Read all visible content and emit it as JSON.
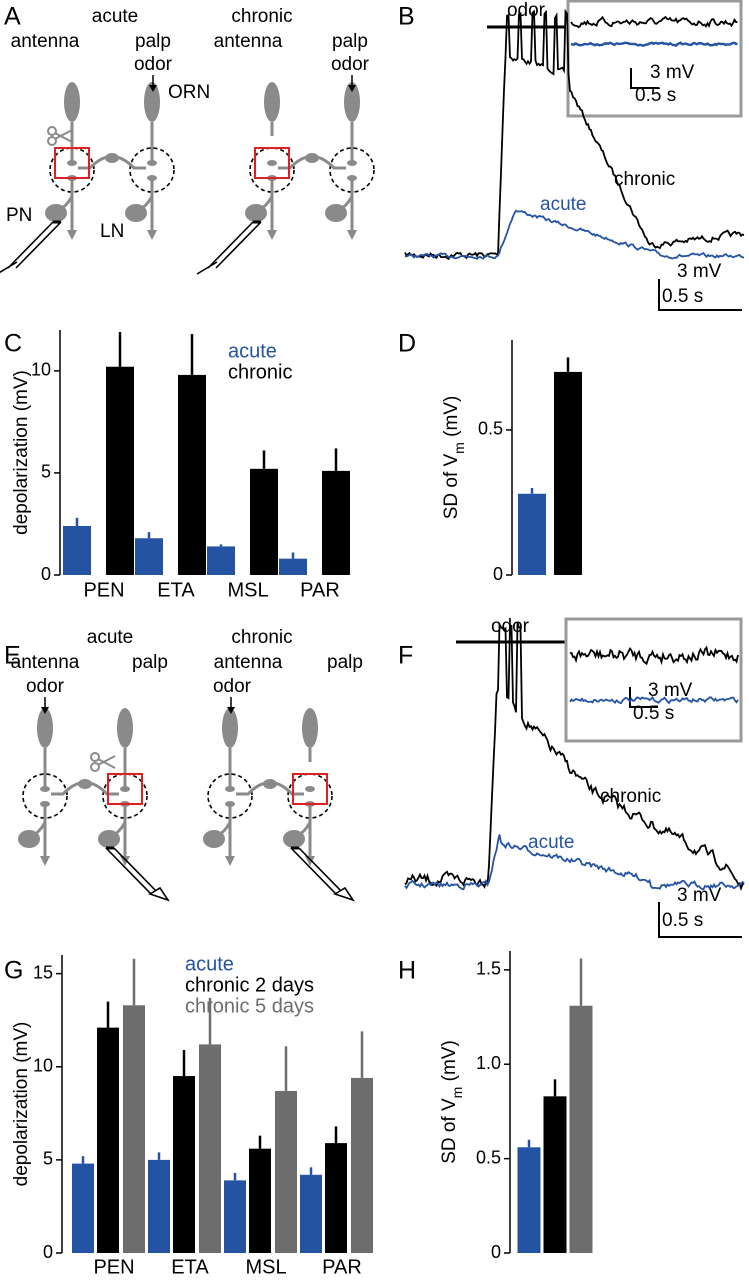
{
  "panel_labels": [
    "A",
    "B",
    "C",
    "D",
    "E",
    "F",
    "G",
    "H"
  ],
  "diagram_a": {
    "left": {
      "condition": "acute",
      "organ1": "antenna",
      "organ2": "palp",
      "stimulus": "odor"
    },
    "right": {
      "condition": "chronic",
      "organ1": "antenna",
      "organ2": "palp",
      "stimulus": "odor"
    },
    "neurons": {
      "orn": "ORN",
      "pn": "PN",
      "ln": "LN"
    }
  },
  "diagram_e": {
    "left": {
      "condition": "acute",
      "organ1": "antenna",
      "organ2": "palp",
      "stimulus": "odor"
    },
    "right": {
      "condition": "chronic",
      "organ1": "antenna",
      "organ2": "palp",
      "stimulus": "odor"
    }
  },
  "trace_b": {
    "stimulus": "odor",
    "chronic": "chronic",
    "acute": "acute",
    "scale_v": "3 mV",
    "scale_t": "0.5 s",
    "inset_scale_v": "3 mV",
    "inset_scale_t": "0.5 s"
  },
  "trace_f": {
    "stimulus": "odor",
    "chronic": "chronic",
    "acute": "acute",
    "scale_v": "3 mV",
    "scale_t": "0.5 s",
    "inset_scale_v": "3 mV",
    "inset_scale_t": "0.5 s"
  },
  "chart_data": [
    {
      "type": "bar",
      "categories": [
        "PEN",
        "ETA",
        "MSL",
        "PAR"
      ],
      "ylabel": [
        "depolarization (mV)"
      ],
      "ylim": [
        0,
        12
      ],
      "yticks": [
        0,
        5,
        10
      ],
      "series": [
        {
          "name": "acute",
          "color": "#2553a3",
          "values": [
            2.4,
            1.8,
            1.4,
            0.8
          ],
          "errors": [
            0.4,
            0.3,
            0.1,
            0.3
          ]
        },
        {
          "name": "chronic",
          "color": "#000000",
          "values": [
            10.2,
            9.8,
            5.2,
            5.1
          ],
          "errors": [
            1.7,
            2.0,
            0.9,
            1.1
          ]
        }
      ]
    },
    {
      "type": "bar",
      "categories": [
        null,
        null
      ],
      "ylabel": [
        "SD of V",
        "m",
        " (mV)"
      ],
      "ylim": [
        0,
        0.81
      ],
      "yticks": [
        0,
        0.5
      ],
      "values": [
        0.28,
        0.7
      ],
      "errors": [
        0.02,
        0.05
      ],
      "colors": [
        "#2553a3",
        "#000000"
      ]
    },
    {
      "type": "bar",
      "categories": [
        "PEN",
        "ETA",
        "MSL",
        "PAR"
      ],
      "ylabel": [
        "depolarization (mV)"
      ],
      "ylim": [
        0,
        16
      ],
      "yticks": [
        0,
        5,
        10,
        15
      ],
      "series": [
        {
          "name": "acute",
          "color": "#2553a3",
          "values": [
            4.8,
            5.0,
            3.9,
            4.2
          ],
          "errors": [
            0.4,
            0.4,
            0.4,
            0.4
          ]
        },
        {
          "name": "chronic 2 days",
          "color": "#000000",
          "values": [
            12.1,
            9.5,
            5.6,
            5.9
          ],
          "errors": [
            1.4,
            1.4,
            0.7,
            0.9
          ]
        },
        {
          "name": "chronic 5 days",
          "color": "#6d6d6d",
          "values": [
            13.3,
            11.2,
            8.7,
            9.4
          ],
          "errors": [
            2.5,
            2.5,
            2.4,
            2.5
          ]
        }
      ]
    },
    {
      "type": "bar",
      "categories": [
        null,
        null,
        null
      ],
      "ylabel": [
        "SD of V",
        "m",
        " (mV)"
      ],
      "ylim": [
        0,
        1.6
      ],
      "yticks": [
        0,
        0.5,
        {
          "value": 1,
          "label": "1.0"
        },
        1.5
      ],
      "values": [
        0.56,
        0.83,
        1.31
      ],
      "errors": [
        0.04,
        0.09,
        0.25
      ],
      "colors": [
        "#2553a3",
        "#000000",
        "#6d6d6d"
      ]
    }
  ]
}
